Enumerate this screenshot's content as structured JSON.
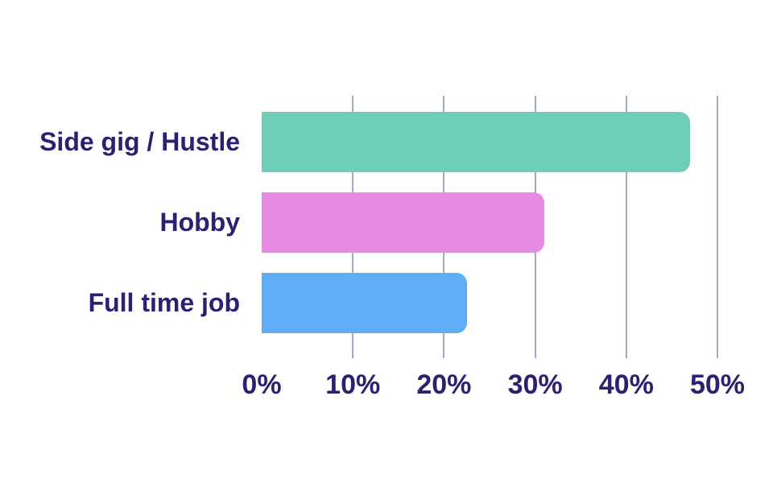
{
  "chart_data": {
    "type": "bar",
    "orientation": "horizontal",
    "title": "",
    "xlabel": "",
    "ylabel": "",
    "categories": [
      "Side gig / Hustle",
      "Hobby",
      "Full time job"
    ],
    "values": [
      47,
      31,
      22.5
    ],
    "value_unit": "%",
    "bar_colors": [
      "#6dcfba",
      "#e78ae4",
      "#5fadf7"
    ],
    "x_ticks": [
      0,
      10,
      20,
      30,
      40,
      50
    ],
    "x_tick_labels": [
      "0%",
      "10%",
      "20%",
      "30%",
      "40%",
      "50%"
    ],
    "xlim": [
      0,
      50
    ],
    "grid": "vertical-only, no line at 0%",
    "legend": "none",
    "gridline_color": "#a9a8c2",
    "label_color": "#2b2171",
    "background_color": "#ffffff"
  }
}
